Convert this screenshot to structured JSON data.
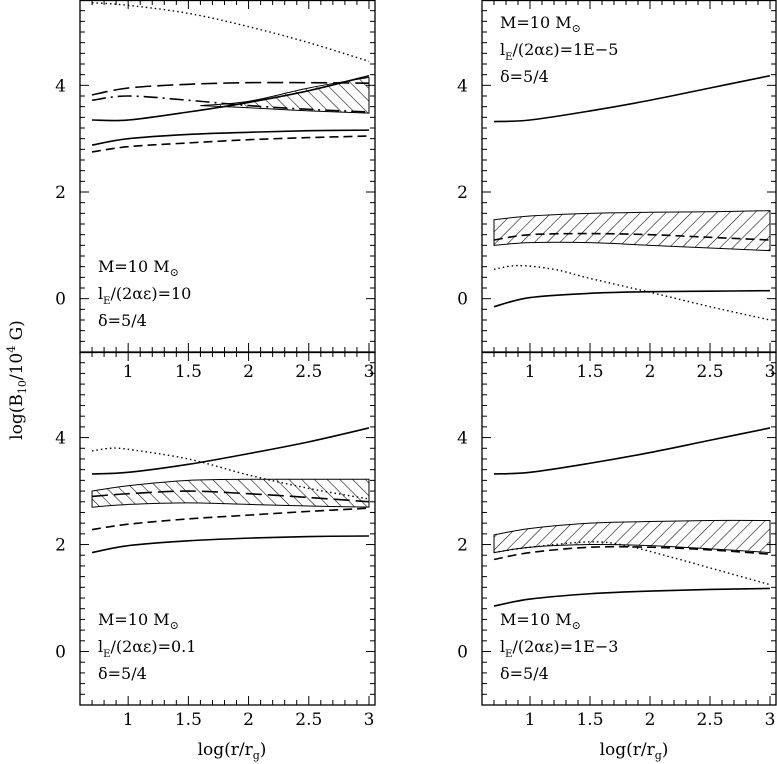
{
  "figure": {
    "ylabel": "log(B",
    "ylabel_sub": "10",
    "ylabel_tail": "/10",
    "ylabel_sup": "4",
    "ylabel_unit": " G)",
    "xlabel": "log(r/r",
    "xlabel_sub": "g",
    "xlabel_tail": ")"
  },
  "chart_data": [
    {
      "id": "top-left",
      "type": "line",
      "xlim": [
        0.6,
        3.05
      ],
      "ylim": [
        -1.0,
        5.6
      ],
      "xticks": [
        1,
        1.5,
        2,
        2.5,
        3
      ],
      "xticklabels": [
        "1",
        "1.5",
        "2",
        "2.5",
        "3"
      ],
      "yticks": [
        0,
        2,
        4
      ],
      "yticklabels": [
        "0",
        "2",
        "4"
      ],
      "annotation": {
        "line1": "M=10 M",
        "line1_sym": "⊙",
        "line2": "l",
        "line2_sub": "E",
        "line2_tail": "/(2αε)=10",
        "line3": "δ=5/4"
      },
      "annotation_pos": "bottom-left",
      "series": [
        {
          "style": "dotted",
          "x": [
            0.7,
            1.0,
            1.5,
            2.0,
            2.5,
            3.0
          ],
          "y": [
            5.55,
            5.5,
            5.35,
            5.1,
            4.8,
            4.45
          ]
        },
        {
          "style": "longdash",
          "x": [
            0.7,
            1.0,
            1.5,
            2.0,
            2.5,
            3.0
          ],
          "y": [
            3.82,
            3.95,
            4.02,
            4.05,
            4.05,
            4.04
          ]
        },
        {
          "style": "dashdot",
          "x": [
            0.7,
            1.0,
            1.5,
            2.0,
            2.5,
            3.0
          ],
          "y": [
            3.72,
            3.8,
            3.72,
            3.62,
            3.55,
            3.5
          ]
        },
        {
          "style": "solid",
          "x": [
            0.7,
            1.0,
            1.5,
            2.0,
            2.5,
            3.0
          ],
          "y": [
            3.35,
            3.35,
            3.5,
            3.68,
            3.9,
            4.18
          ]
        },
        {
          "style": "solid",
          "x": [
            0.7,
            1.0,
            1.5,
            2.0,
            2.5,
            3.0
          ],
          "y": [
            2.88,
            3.0,
            3.08,
            3.12,
            3.15,
            3.16
          ]
        },
        {
          "style": "dashed",
          "x": [
            0.7,
            1.0,
            1.5,
            2.0,
            2.5,
            3.0
          ],
          "y": [
            2.75,
            2.85,
            2.92,
            2.98,
            3.02,
            3.05
          ]
        }
      ],
      "bands": [
        {
          "pattern": "hatch-right",
          "x": [
            1.6,
            2.0,
            2.5,
            3.0
          ],
          "y_low": [
            3.62,
            3.58,
            3.52,
            3.48
          ],
          "y_high": [
            3.62,
            3.7,
            3.95,
            4.15
          ]
        }
      ]
    },
    {
      "id": "top-right",
      "type": "line",
      "xlim": [
        0.6,
        3.05
      ],
      "ylim": [
        -1.0,
        5.6
      ],
      "xticks": [
        1,
        1.5,
        2,
        2.5,
        3
      ],
      "xticklabels": [
        "1",
        "1.5",
        "2",
        "2.5",
        "3"
      ],
      "yticks": [
        0,
        2,
        4
      ],
      "yticklabels": [
        "0",
        "2",
        "4"
      ],
      "annotation": {
        "line1": "M=10 M",
        "line1_sym": "⊙",
        "line2": "l",
        "line2_sub": "E",
        "line2_tail": "/(2αε)=1E−5",
        "line3": "δ=5/4"
      },
      "annotation_pos": "top-left",
      "series": [
        {
          "style": "solid",
          "x": [
            0.7,
            1.0,
            1.5,
            2.0,
            2.5,
            3.0
          ],
          "y": [
            3.32,
            3.35,
            3.52,
            3.72,
            3.95,
            4.18
          ]
        },
        {
          "style": "dotted",
          "x": [
            0.7,
            0.9,
            1.2,
            1.5,
            2.0,
            2.5,
            3.0
          ],
          "y": [
            0.55,
            0.62,
            0.55,
            0.38,
            0.12,
            -0.15,
            -0.4
          ]
        },
        {
          "style": "solid",
          "x": [
            0.7,
            1.0,
            1.5,
            2.0,
            2.5,
            3.0
          ],
          "y": [
            -0.15,
            0.02,
            0.1,
            0.13,
            0.14,
            0.15
          ]
        },
        {
          "style": "dashed",
          "x": [
            0.7,
            1.0,
            1.5,
            2.0,
            2.5,
            3.0
          ],
          "y": [
            1.1,
            1.2,
            1.22,
            1.2,
            1.15,
            1.1
          ]
        }
      ],
      "bands": [
        {
          "pattern": "hatch-left",
          "x": [
            0.7,
            1.0,
            1.5,
            2.0,
            2.5,
            3.0
          ],
          "y_low": [
            1.0,
            1.05,
            1.05,
            1.0,
            0.95,
            0.9
          ],
          "y_high": [
            1.48,
            1.55,
            1.6,
            1.62,
            1.63,
            1.65
          ]
        }
      ]
    },
    {
      "id": "bottom-left",
      "type": "line",
      "xlim": [
        0.6,
        3.05
      ],
      "ylim": [
        -1.0,
        5.6
      ],
      "xticks": [
        1,
        1.5,
        2,
        2.5,
        3
      ],
      "xticklabels": [
        "1",
        "1.5",
        "2",
        "2.5",
        "3"
      ],
      "yticks": [
        0,
        2,
        4
      ],
      "yticklabels": [
        "0",
        "2",
        "4"
      ],
      "annotation": {
        "line1": "M=10 M",
        "line1_sym": "⊙",
        "line2": "l",
        "line2_sub": "E",
        "line2_tail": "/(2αε)=0.1",
        "line3": "δ=5/4"
      },
      "annotation_pos": "bottom-left",
      "series": [
        {
          "style": "dotted",
          "x": [
            0.7,
            0.85,
            1.0,
            1.5,
            2.0,
            2.5,
            3.0
          ],
          "y": [
            3.75,
            3.8,
            3.78,
            3.6,
            3.3,
            3.05,
            2.85
          ]
        },
        {
          "style": "solid",
          "x": [
            0.7,
            1.0,
            1.5,
            2.0,
            2.5,
            3.0
          ],
          "y": [
            3.32,
            3.35,
            3.5,
            3.7,
            3.92,
            4.18
          ]
        },
        {
          "style": "longdash",
          "x": [
            0.7,
            1.0,
            1.5,
            2.0,
            2.5,
            3.0
          ],
          "y": [
            2.9,
            2.95,
            3.0,
            2.95,
            2.88,
            2.8
          ]
        },
        {
          "style": "dashed",
          "x": [
            0.7,
            1.0,
            1.5,
            2.0,
            2.5,
            3.0
          ],
          "y": [
            2.28,
            2.38,
            2.48,
            2.55,
            2.62,
            2.68
          ]
        },
        {
          "style": "solid",
          "x": [
            0.7,
            1.0,
            1.5,
            2.0,
            2.5,
            3.0
          ],
          "y": [
            1.85,
            1.98,
            2.07,
            2.12,
            2.15,
            2.16
          ]
        }
      ],
      "bands": [
        {
          "pattern": "hatch-right",
          "x": [
            0.7,
            1.0,
            1.5,
            2.0,
            2.5,
            3.0
          ],
          "y_low": [
            2.7,
            2.75,
            2.78,
            2.75,
            2.72,
            2.7
          ],
          "y_high": [
            3.0,
            3.1,
            3.2,
            3.22,
            3.22,
            3.22
          ]
        }
      ]
    },
    {
      "id": "bottom-right",
      "type": "line",
      "xlim": [
        0.6,
        3.05
      ],
      "ylim": [
        -1.0,
        5.6
      ],
      "xticks": [
        1,
        1.5,
        2,
        2.5,
        3
      ],
      "xticklabels": [
        "1",
        "1.5",
        "2",
        "2.5",
        "3"
      ],
      "yticks": [
        0,
        2,
        4
      ],
      "yticklabels": [
        "0",
        "2",
        "4"
      ],
      "annotation": {
        "line1": "M=10 M",
        "line1_sym": "⊙",
        "line2": "l",
        "line2_sub": "E",
        "line2_tail": "/(2αε)=1E−3",
        "line3": "δ=5/4"
      },
      "annotation_pos": "bottom-left",
      "series": [
        {
          "style": "solid",
          "x": [
            0.7,
            1.0,
            1.5,
            2.0,
            2.5,
            3.0
          ],
          "y": [
            3.32,
            3.35,
            3.52,
            3.72,
            3.95,
            4.18
          ]
        },
        {
          "style": "dotted",
          "x": [
            0.7,
            1.0,
            1.5,
            1.8,
            2.2,
            2.6,
            3.0
          ],
          "y": [
            1.85,
            1.95,
            2.05,
            1.98,
            1.75,
            1.5,
            1.25
          ]
        },
        {
          "style": "dashed",
          "x": [
            0.7,
            1.0,
            1.5,
            2.0,
            2.5,
            3.0
          ],
          "y": [
            1.72,
            1.85,
            1.95,
            1.95,
            1.9,
            1.82
          ]
        },
        {
          "style": "solid",
          "x": [
            0.7,
            1.0,
            1.5,
            2.0,
            2.5,
            3.0
          ],
          "y": [
            0.85,
            0.98,
            1.08,
            1.13,
            1.16,
            1.18
          ]
        }
      ],
      "bands": [
        {
          "pattern": "hatch-left",
          "x": [
            0.7,
            1.0,
            1.5,
            2.0,
            2.5,
            3.0
          ],
          "y_low": [
            1.85,
            1.95,
            2.0,
            1.98,
            1.92,
            1.85
          ],
          "y_high": [
            2.18,
            2.3,
            2.4,
            2.43,
            2.45,
            2.45
          ]
        }
      ]
    }
  ]
}
